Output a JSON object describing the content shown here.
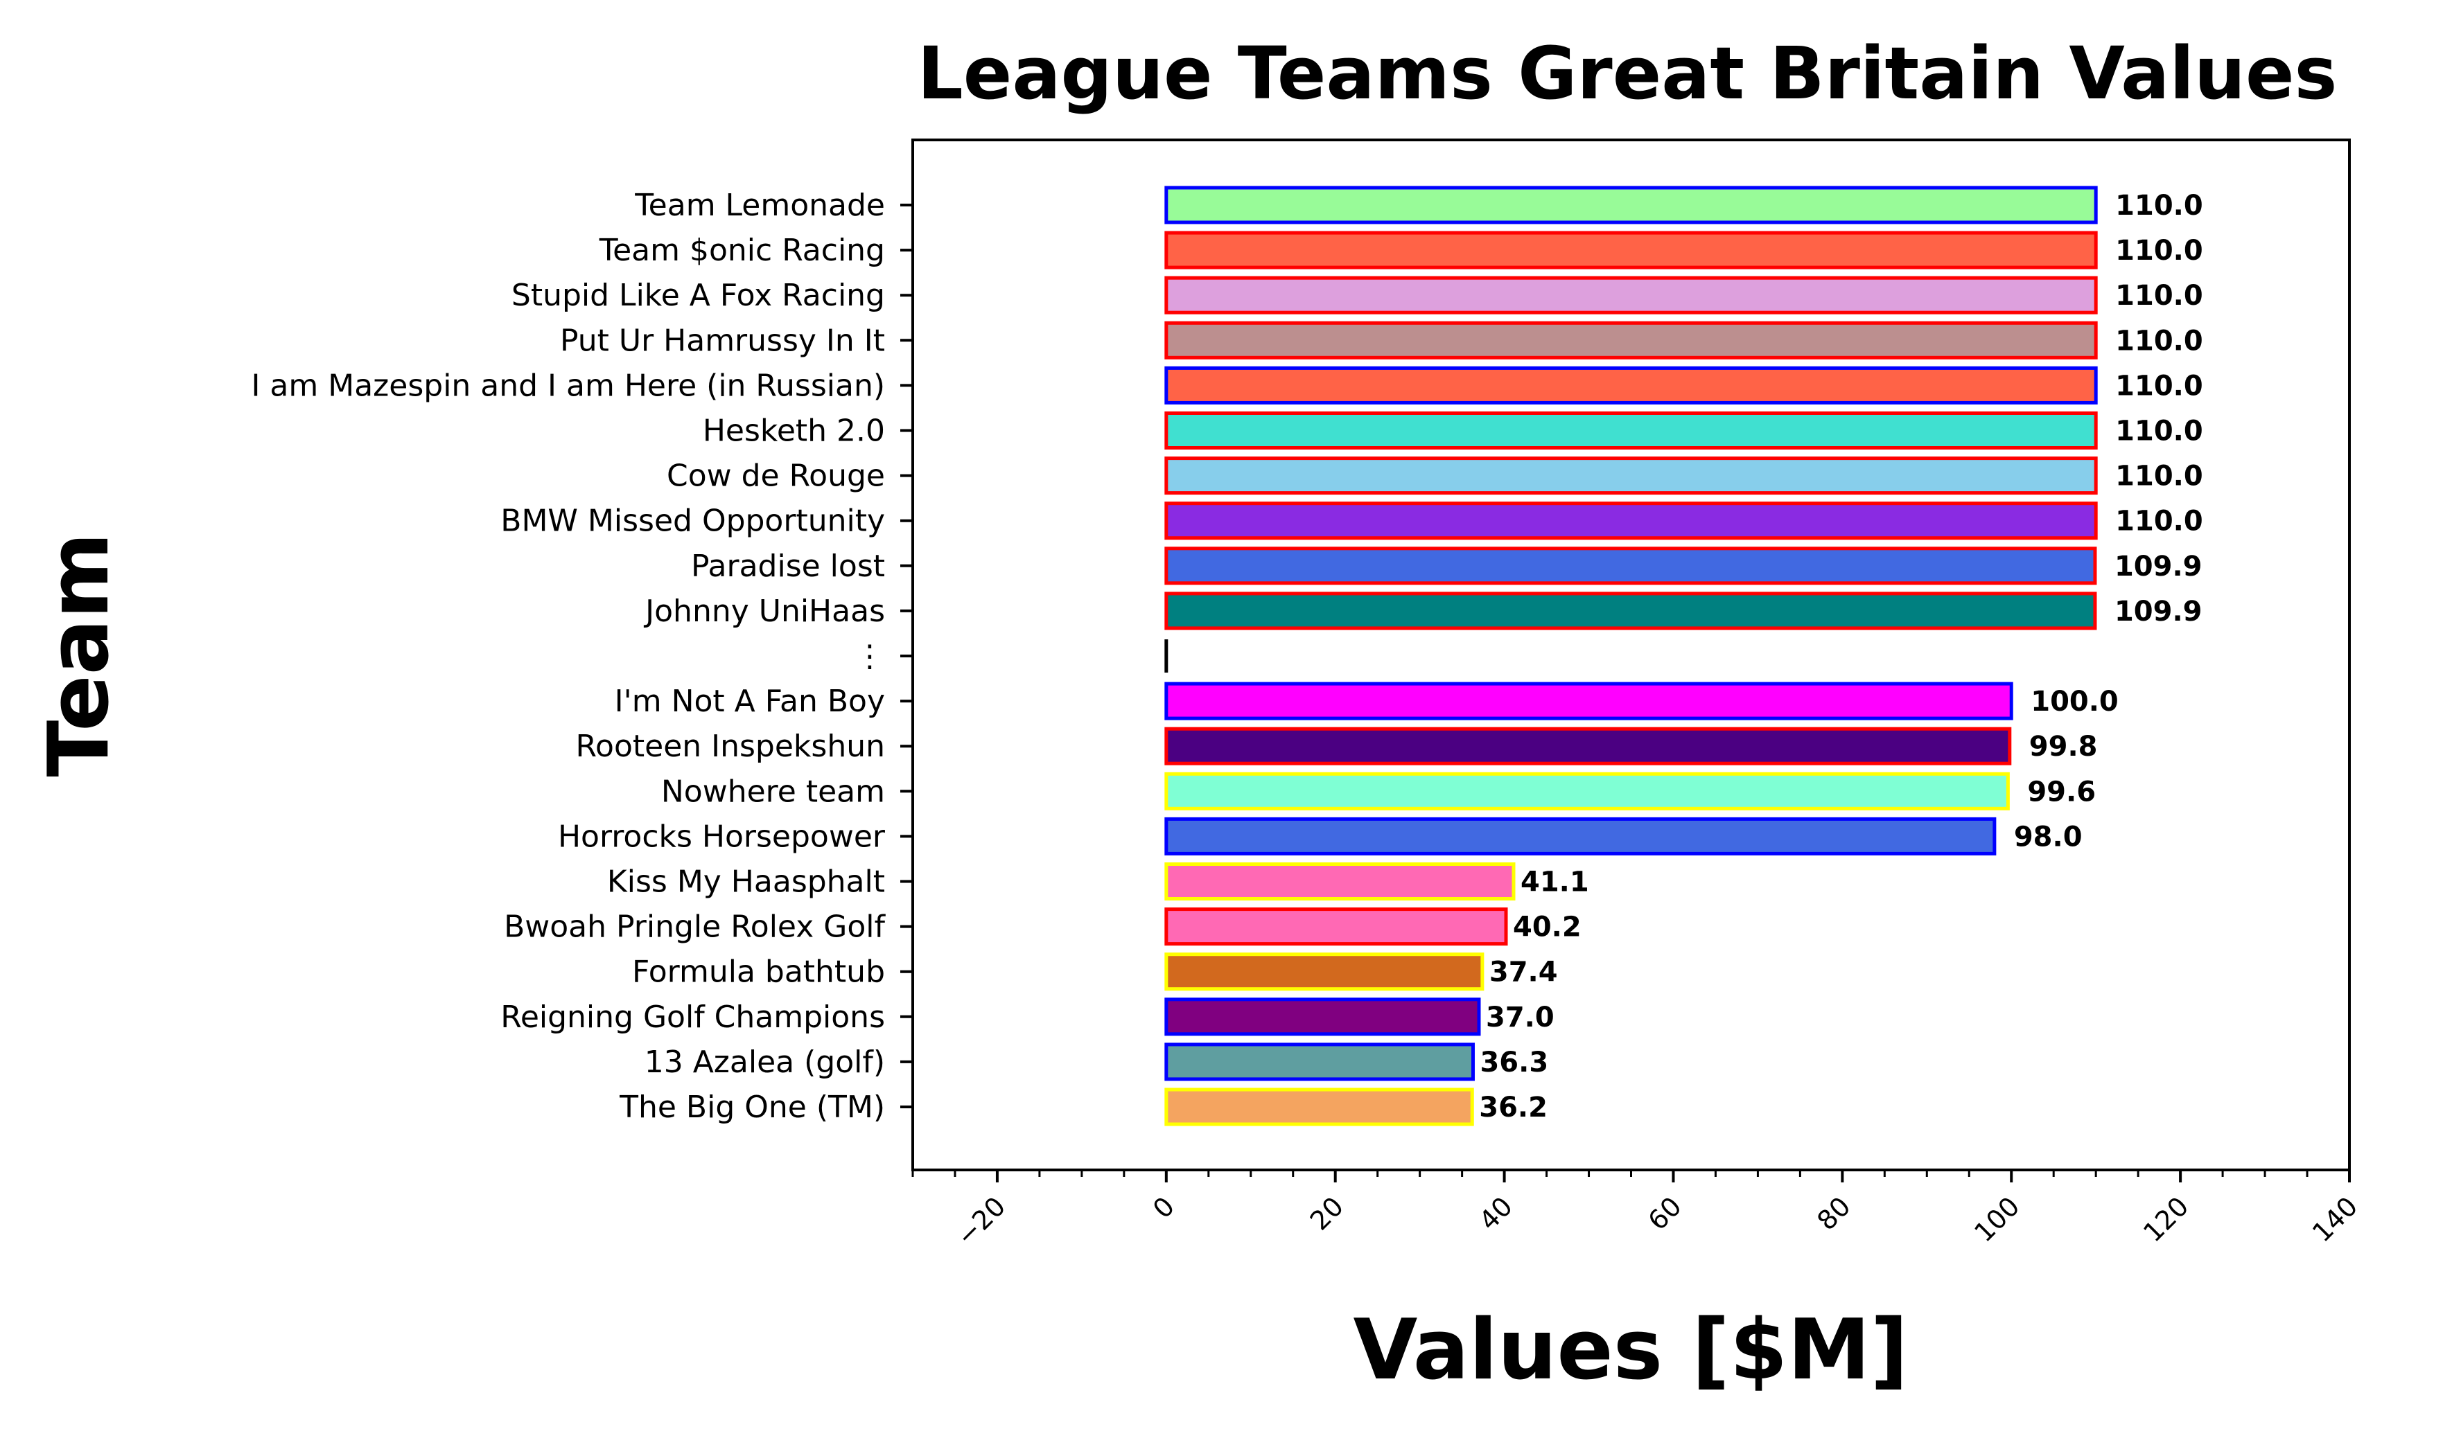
{
  "chart_data": {
    "type": "bar",
    "orientation": "horizontal",
    "title": "League Teams Great Britain Values",
    "xlabel": "Values [$M]",
    "ylabel": "Team",
    "xlim": [
      -30,
      140
    ],
    "xticks": [
      -20,
      0,
      20,
      40,
      60,
      80,
      100,
      120,
      140
    ],
    "xtick_labels": [
      "−20",
      "0",
      "20",
      "40",
      "60",
      "80",
      "100",
      "120",
      "140"
    ],
    "grid": false,
    "legend": "none",
    "bars": [
      {
        "category": "Team Lemonade",
        "value": 110.0,
        "label": "110.0",
        "fill": "#98fb98",
        "edge": "#0000ff"
      },
      {
        "category": "Team $onic Racing",
        "value": 110.0,
        "label": "110.0",
        "fill": "#ff6347",
        "edge": "#ff0000"
      },
      {
        "category": "Stupid Like A Fox Racing",
        "value": 110.0,
        "label": "110.0",
        "fill": "#dda0dd",
        "edge": "#ff0000"
      },
      {
        "category": "Put Ur Hamrussy In It",
        "value": 110.0,
        "label": "110.0",
        "fill": "#bc8f8f",
        "edge": "#ff0000"
      },
      {
        "category": "I am Mazespin and I am Here (in Russian)",
        "value": 110.0,
        "label": "110.0",
        "fill": "#ff6347",
        "edge": "#0000ff"
      },
      {
        "category": "Hesketh 2.0",
        "value": 110.0,
        "label": "110.0",
        "fill": "#40e0d0",
        "edge": "#ff0000"
      },
      {
        "category": "Cow de Rouge",
        "value": 110.0,
        "label": "110.0",
        "fill": "#87ceeb",
        "edge": "#ff0000"
      },
      {
        "category": "BMW Missed Opportunity",
        "value": 110.0,
        "label": "110.0",
        "fill": "#8a2be2",
        "edge": "#ff0000"
      },
      {
        "category": "Paradise lost",
        "value": 109.9,
        "label": "109.9",
        "fill": "#4169e1",
        "edge": "#ff0000"
      },
      {
        "category": "Johnny UniHaas",
        "value": 109.9,
        "label": "109.9",
        "fill": "#008080",
        "edge": "#ff0000"
      },
      {
        "category": "⋮",
        "value": 0,
        "label": "",
        "fill": "#000000",
        "edge": "#000000",
        "separator": true
      },
      {
        "category": "I'm Not A Fan Boy",
        "value": 100.0,
        "label": "100.0",
        "fill": "#ff00ff",
        "edge": "#0000ff"
      },
      {
        "category": "Rooteen Inspekshun",
        "value": 99.8,
        "label": "99.8",
        "fill": "#4b0082",
        "edge": "#ff0000"
      },
      {
        "category": "Nowhere team",
        "value": 99.6,
        "label": "99.6",
        "fill": "#7fffd4",
        "edge": "#ffff00"
      },
      {
        "category": "Horrocks Horsepower",
        "value": 98.0,
        "label": "98.0",
        "fill": "#4169e1",
        "edge": "#0000ff"
      },
      {
        "category": "Kiss My Haasphalt",
        "value": 41.1,
        "label": "41.1",
        "fill": "#ff69b4",
        "edge": "#ffff00"
      },
      {
        "category": "Bwoah Pringle Rolex Golf",
        "value": 40.2,
        "label": "40.2",
        "fill": "#ff69b4",
        "edge": "#ff0000"
      },
      {
        "category": "Formula bathtub",
        "value": 37.4,
        "label": "37.4",
        "fill": "#d2691e",
        "edge": "#ffff00"
      },
      {
        "category": "Reigning Golf Champions",
        "value": 37.0,
        "label": "37.0",
        "fill": "#800080",
        "edge": "#0000ff"
      },
      {
        "category": "13 Azalea (golf)",
        "value": 36.3,
        "label": "36.3",
        "fill": "#5f9ea0",
        "edge": "#0000ff"
      },
      {
        "category": "The Big One (TM)",
        "value": 36.2,
        "label": "36.2",
        "fill": "#f4a460",
        "edge": "#ffff00"
      }
    ]
  }
}
